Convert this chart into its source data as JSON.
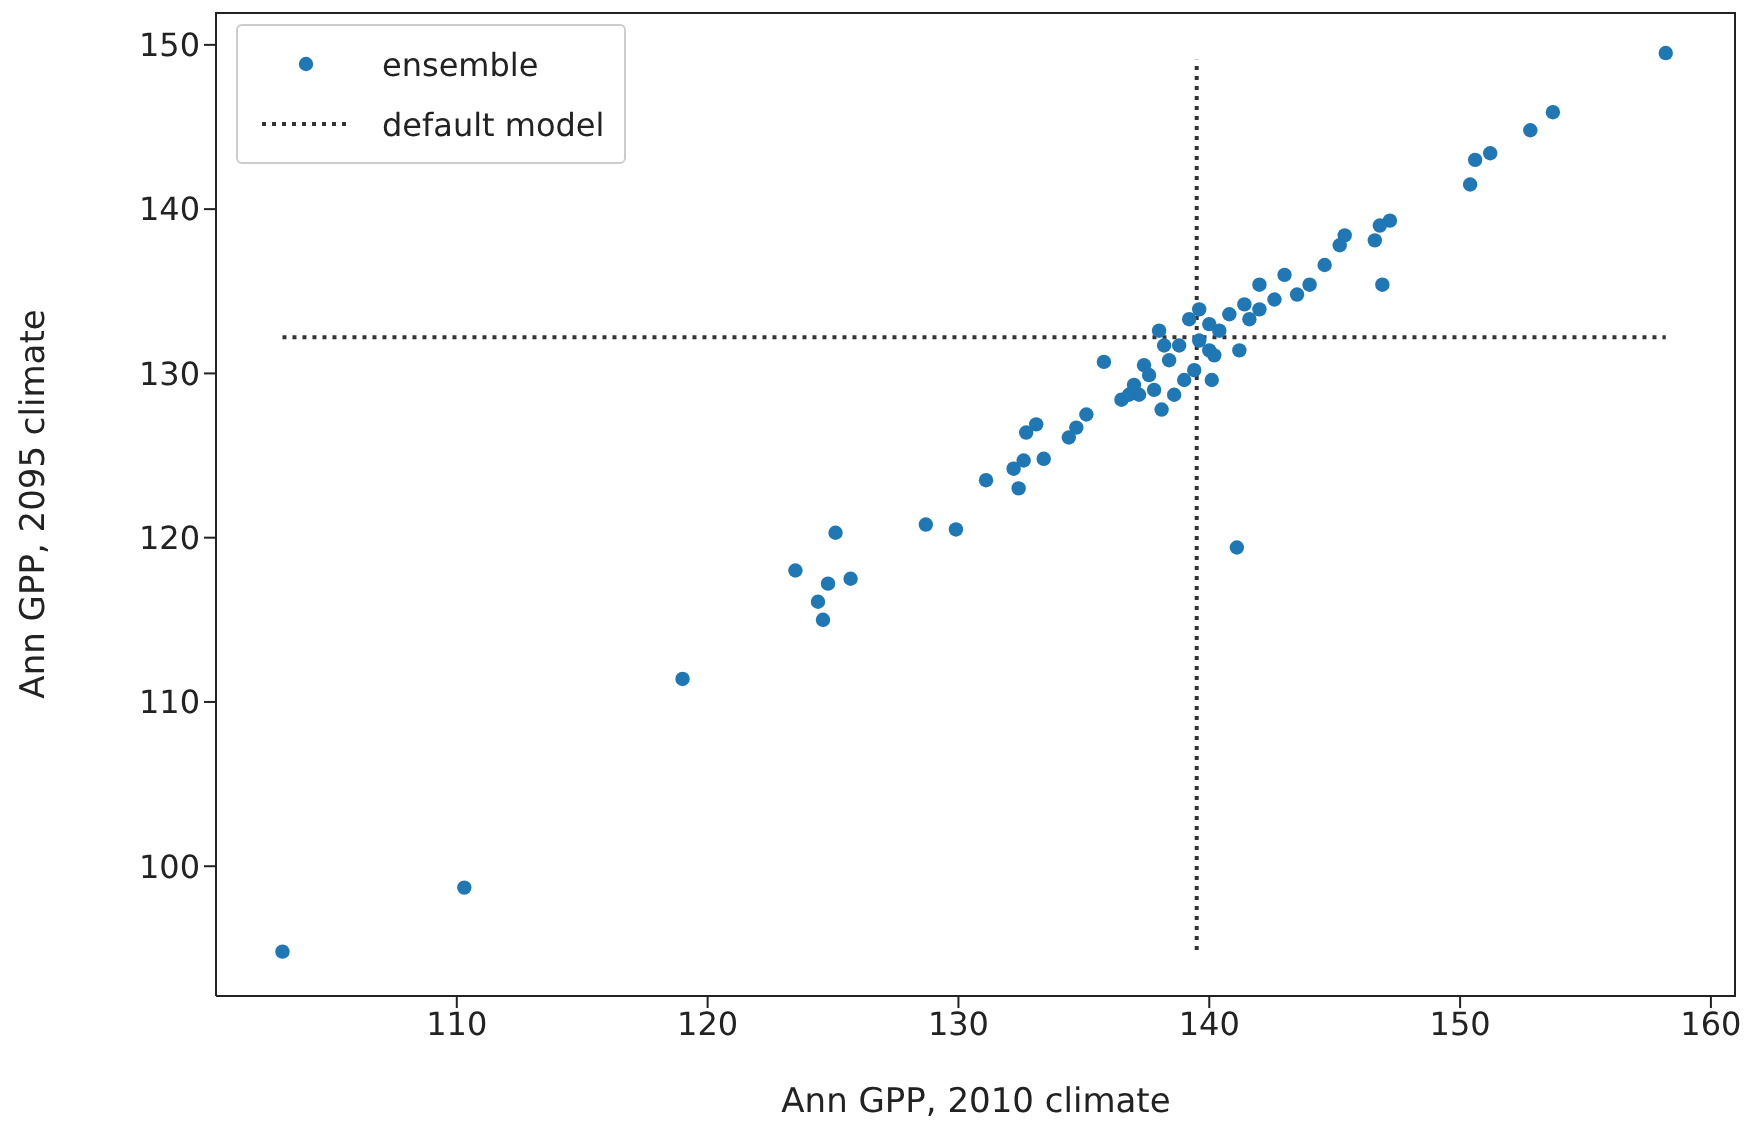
{
  "chart_data": {
    "type": "scatter",
    "xlabel": "Ann GPP, 2010 climate",
    "ylabel": "Ann GPP, 2095 climate",
    "xlim": [
      100.4,
      161.0
    ],
    "ylim": [
      92.1,
      152.0
    ],
    "xticks": [
      110,
      120,
      130,
      140,
      150,
      160
    ],
    "yticks": [
      100,
      110,
      120,
      130,
      140,
      150
    ],
    "grid": false,
    "legend": "top left",
    "marker": "circle",
    "series": [
      {
        "name": "ensemble",
        "color": "#1f77b4",
        "x": [
          103.05,
          110.3,
          119.0,
          123.5,
          125.1,
          124.8,
          125.7,
          124.4,
          124.6,
          128.7,
          129.9,
          131.1,
          132.4,
          132.2,
          132.6,
          133.4,
          132.7,
          133.1,
          134.4,
          134.7,
          135.1,
          135.8,
          136.5,
          137.0,
          137.6,
          138.1,
          138.0,
          138.4,
          138.8,
          139.2,
          139.6,
          139.0,
          140.1,
          140.0,
          141.1,
          140.4,
          141.2,
          140.8,
          141.4,
          142.0,
          142.0,
          143.0,
          142.6,
          143.5,
          144.0,
          144.6,
          145.2,
          145.4,
          146.6,
          146.8,
          147.2,
          146.9,
          150.4,
          150.6,
          151.2,
          152.8,
          153.7,
          158.2,
          137.2,
          137.8,
          138.6,
          139.4,
          140.2,
          141.6,
          138.2,
          137.4,
          136.8,
          140.0,
          139.6
        ],
        "values": [
          94.8,
          98.7,
          111.4,
          118.0,
          120.3,
          117.2,
          117.5,
          116.1,
          115.0,
          120.8,
          120.5,
          123.5,
          123.0,
          124.2,
          124.7,
          124.8,
          126.4,
          126.9,
          126.1,
          126.7,
          127.5,
          130.7,
          128.4,
          129.3,
          129.9,
          127.8,
          132.6,
          130.8,
          131.7,
          133.3,
          132.0,
          129.6,
          129.6,
          131.4,
          119.4,
          132.6,
          131.4,
          133.6,
          134.2,
          135.4,
          133.9,
          136.0,
          134.5,
          134.8,
          135.4,
          136.6,
          137.8,
          138.4,
          138.1,
          139.0,
          139.3,
          135.4,
          141.5,
          143.0,
          143.4,
          144.8,
          145.9,
          149.5,
          128.7,
          129.0,
          128.7,
          130.2,
          131.1,
          133.3,
          131.7,
          130.5,
          128.7,
          133.0,
          133.9
        ]
      },
      {
        "name": "default model",
        "type": "line",
        "color": "#333333",
        "line_style": "dotted",
        "marker": "none",
        "x": [
          139.5,
          139.5
        ],
        "values": [
          94.9,
          149.1
        ]
      },
      {
        "type": "line",
        "color": "#333333",
        "line_style": "dotted",
        "marker": "none",
        "x": [
          103.05,
          158.2
        ],
        "values": [
          132.2,
          132.2
        ]
      }
    ]
  }
}
